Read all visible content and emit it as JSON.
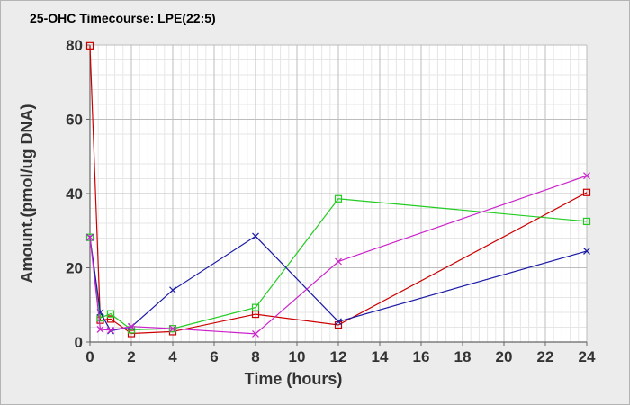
{
  "chart_data": {
    "type": "line",
    "title": "25-OHC Timecourse: LPE(22:5)",
    "xlabel": "Time (hours)",
    "ylabel": "Amount.(pmol/ug DNA)",
    "xlim": [
      0,
      24
    ],
    "ylim": [
      0,
      80
    ],
    "x_ticks": [
      "0",
      "2",
      "4",
      "6",
      "8",
      "10",
      "12",
      "14",
      "16",
      "18",
      "20",
      "22",
      "24"
    ],
    "y_ticks": [
      "0",
      "20",
      "40",
      "60",
      "80"
    ],
    "grid": true,
    "legend": "none",
    "series": [
      {
        "color": "#cc0000",
        "marker": "square",
        "x": [
          0,
          0.5,
          1,
          2,
          4,
          8,
          12,
          24
        ],
        "y": [
          79.8,
          5.9,
          6.2,
          2.3,
          2.8,
          7.5,
          4.6,
          40.3
        ]
      },
      {
        "color": "#22cc22",
        "marker": "square",
        "x": [
          0,
          0.5,
          1,
          2,
          4,
          8,
          12,
          24
        ],
        "y": [
          28.2,
          6.5,
          7.6,
          3.3,
          3.6,
          9.3,
          38.6,
          32.5
        ]
      },
      {
        "color": "#1a1aa6",
        "marker": "x",
        "x": [
          0,
          0.5,
          1,
          2,
          4,
          8,
          12,
          24
        ],
        "y": [
          28.2,
          8.0,
          3.0,
          4.1,
          14.0,
          28.5,
          5.5,
          24.5
        ]
      },
      {
        "color": "#cc22cc",
        "marker": "x",
        "x": [
          0,
          0.5,
          1,
          2,
          4,
          8,
          12,
          24
        ],
        "y": [
          28.2,
          3.4,
          3.2,
          4.2,
          3.6,
          2.2,
          21.7,
          44.8
        ]
      }
    ]
  }
}
